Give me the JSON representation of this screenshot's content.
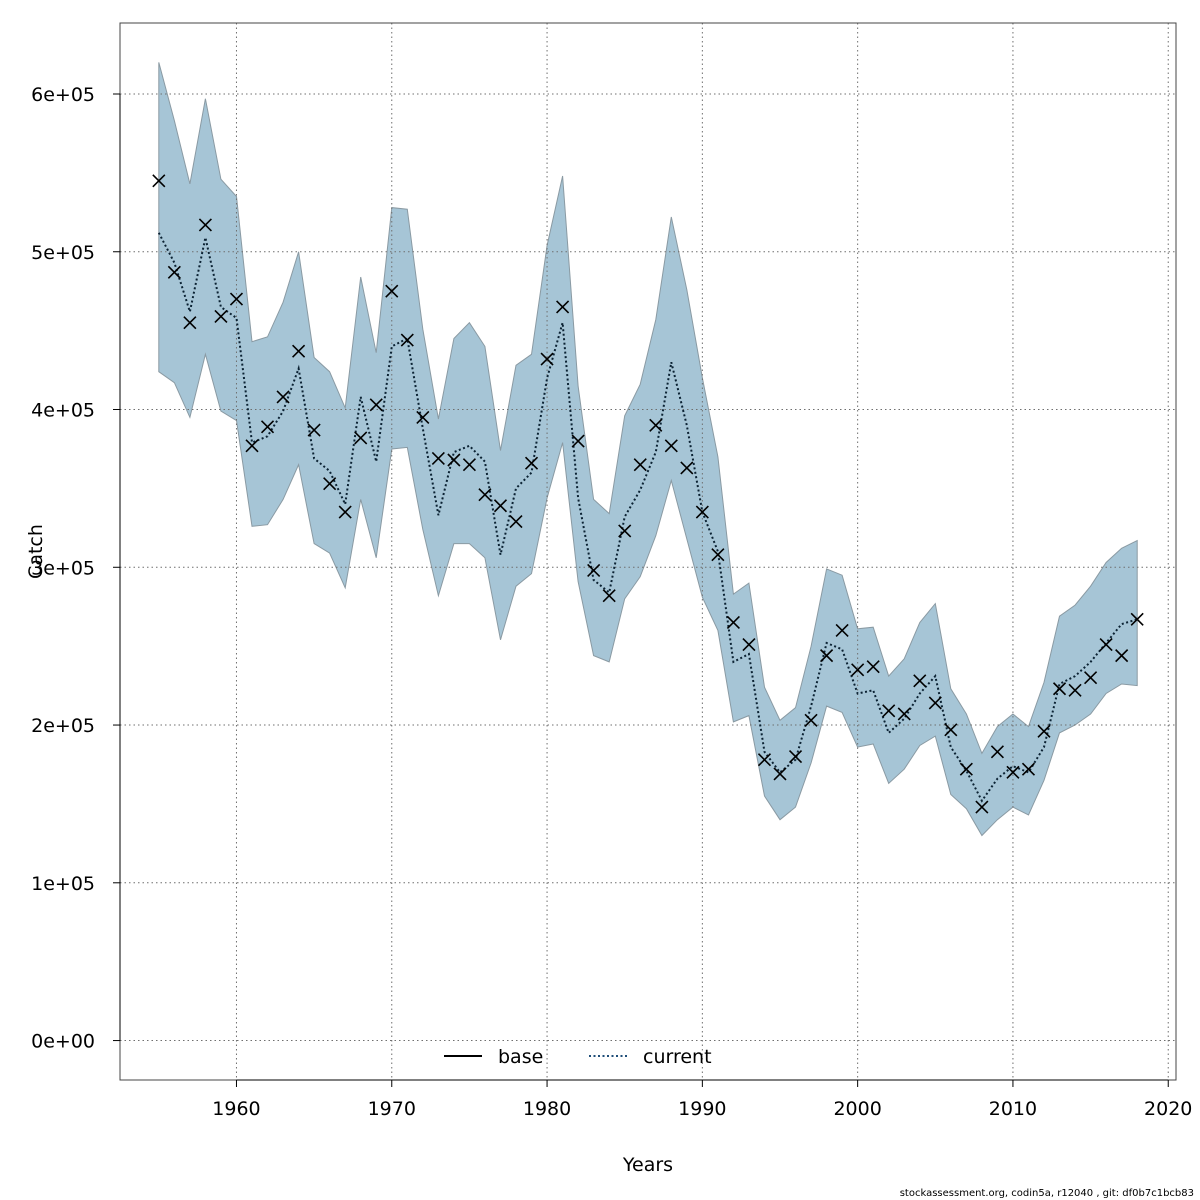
{
  "chart_data": {
    "type": "line",
    "title": "",
    "xlabel": "Years",
    "ylabel": "Catch",
    "xlim": [
      1952.5,
      2020.5
    ],
    "ylim": [
      -25000,
      645000
    ],
    "grid": true,
    "x_ticks": [
      1960,
      1970,
      1980,
      1990,
      2000,
      2010,
      2020
    ],
    "x_tick_labels": [
      "1960",
      "1970",
      "1980",
      "1990",
      "2000",
      "2010",
      "2020"
    ],
    "y_ticks": [
      0,
      100000,
      200000,
      300000,
      400000,
      500000,
      600000
    ],
    "y_tick_labels": [
      "0e+00",
      "1e+05",
      "2e+05",
      "3e+05",
      "4e+05",
      "5e+05",
      "6e+05"
    ],
    "legend": {
      "position": "bottom-center",
      "entries": [
        {
          "label": "base",
          "style": "solid",
          "color": "#000000"
        },
        {
          "label": "current",
          "style": "dotted",
          "color": "#1f4e79"
        }
      ]
    },
    "years": [
      1955,
      1956,
      1957,
      1958,
      1959,
      1960,
      1961,
      1962,
      1963,
      1964,
      1965,
      1966,
      1967,
      1968,
      1969,
      1970,
      1971,
      1972,
      1973,
      1974,
      1975,
      1976,
      1977,
      1978,
      1979,
      1980,
      1981,
      1982,
      1983,
      1984,
      1985,
      1986,
      1987,
      1988,
      1989,
      1990,
      1991,
      1992,
      1993,
      1994,
      1995,
      1996,
      1997,
      1998,
      1999,
      2000,
      2001,
      2002,
      2003,
      2004,
      2005,
      2006,
      2007,
      2008,
      2009,
      2010,
      2011,
      2012,
      2013,
      2014,
      2015,
      2016,
      2017,
      2018
    ],
    "observed_catch": [
      545000,
      487000,
      455000,
      517000,
      459000,
      470000,
      377000,
      389000,
      408000,
      437000,
      387000,
      353000,
      335000,
      382000,
      403000,
      475000,
      444000,
      395000,
      369000,
      368000,
      365000,
      346000,
      339000,
      329000,
      366000,
      432000,
      465000,
      380000,
      298000,
      282000,
      323000,
      365000,
      390000,
      377000,
      363000,
      335000,
      308000,
      265000,
      251000,
      178000,
      169000,
      180000,
      203000,
      244000,
      260000,
      235000,
      237000,
      209000,
      207000,
      228000,
      214000,
      197000,
      172000,
      148000,
      183000,
      170000,
      172000,
      196000,
      223000,
      222000,
      230000,
      251000,
      244000,
      267000
    ],
    "series": [
      {
        "name": "current",
        "values": [
          512000,
          493000,
          462000,
          509000,
          465000,
          458000,
          379000,
          383000,
          399000,
          426000,
          369000,
          361000,
          340000,
          408000,
          367000,
          440000,
          445000,
          388000,
          333000,
          373000,
          377000,
          367000,
          308000,
          350000,
          360000,
          420000,
          455000,
          344000,
          292000,
          284000,
          332000,
          349000,
          373000,
          430000,
          390000,
          335000,
          310000,
          240000,
          245000,
          183000,
          170000,
          178000,
          212000,
          252000,
          248000,
          220000,
          222000,
          195000,
          204000,
          220000,
          231000,
          186000,
          171000,
          152000,
          166000,
          174000,
          170000,
          186000,
          226000,
          231000,
          240000,
          252000,
          264000,
          267000
        ],
        "lower": [
          424000,
          417000,
          395000,
          435000,
          399000,
          393000,
          326000,
          327000,
          343000,
          365000,
          315000,
          309000,
          287000,
          343000,
          306000,
          375000,
          376000,
          324000,
          282000,
          315000,
          315000,
          306000,
          254000,
          288000,
          296000,
          344000,
          379000,
          291000,
          244000,
          240000,
          280000,
          294000,
          320000,
          355000,
          318000,
          281000,
          260000,
          202000,
          206000,
          155000,
          140000,
          148000,
          176000,
          212000,
          208000,
          186000,
          188000,
          163000,
          172000,
          187000,
          193000,
          156000,
          147000,
          130000,
          140000,
          148000,
          143000,
          165000,
          195000,
          200000,
          207000,
          220000,
          226000,
          225000
        ],
        "upper": [
          620000,
          583000,
          543000,
          597000,
          546000,
          535000,
          443000,
          446000,
          468000,
          500000,
          433000,
          424000,
          401000,
          484000,
          436000,
          528000,
          527000,
          451000,
          394000,
          445000,
          455000,
          440000,
          374000,
          428000,
          435000,
          504000,
          548000,
          415000,
          343000,
          334000,
          396000,
          416000,
          457000,
          522000,
          476000,
          420000,
          370000,
          283000,
          290000,
          224000,
          203000,
          211000,
          250000,
          299000,
          295000,
          261000,
          262000,
          231000,
          242000,
          265000,
          277000,
          223000,
          207000,
          182000,
          199000,
          207000,
          199000,
          227000,
          269000,
          276000,
          288000,
          303000,
          312000,
          317000
        ]
      }
    ]
  },
  "footer": {
    "credit": "stockassessment.org, codin5a, r12040 , git: df0b7c1bcb83"
  },
  "colors": {
    "band": "#a6c5d6",
    "band_edge": "#8a9aa3",
    "current_line": "#1f4e79",
    "grid": "#6f6f6f"
  }
}
